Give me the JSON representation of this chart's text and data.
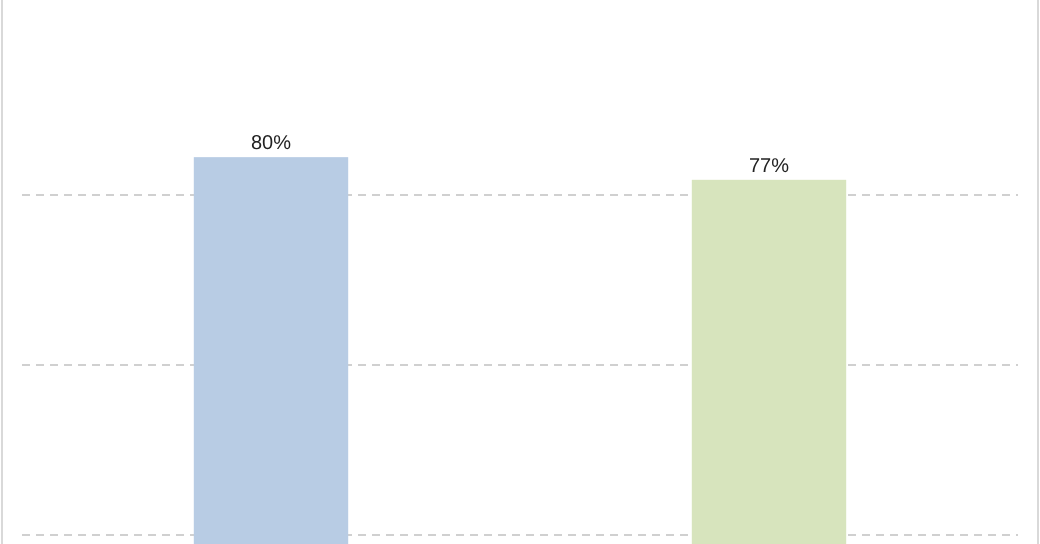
{
  "chart_data": {
    "type": "bar",
    "categories": [
      null,
      null
    ],
    "values": [
      80,
      77
    ],
    "colors": [
      "#b8cce4",
      "#d7e4bd"
    ],
    "value_labels": [
      "80%",
      "77%"
    ],
    "ylim": [
      28.8,
      100.8
    ],
    "yticks": [
      {
        "value": 30,
        "label": null
      },
      {
        "value": 52.5,
        "label": null
      },
      {
        "value": 75,
        "label": null
      }
    ],
    "grid": "y"
  }
}
